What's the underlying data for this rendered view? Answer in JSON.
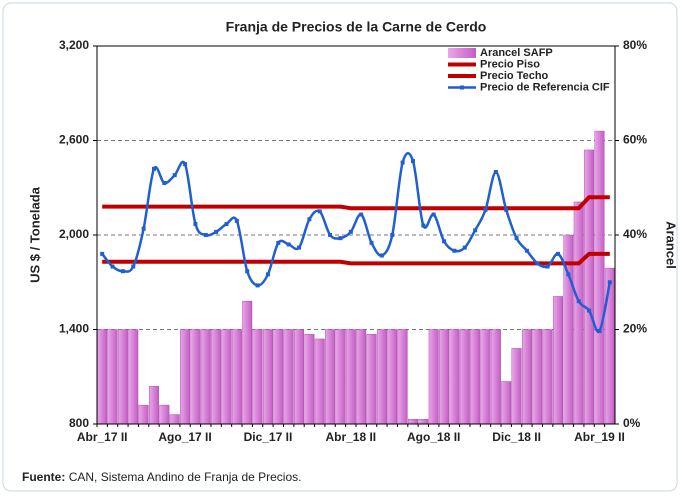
{
  "chart_data": {
    "type": "combo",
    "title": "Franja de Precios de la Carne de Cerdo",
    "y_label": "US $ / Tonelada",
    "y2_label": "Arancel",
    "categories": [
      "Abr_17 II",
      null,
      null,
      null,
      null,
      null,
      null,
      null,
      "Ago_17 II",
      null,
      null,
      null,
      null,
      null,
      null,
      null,
      "Dic_17 II",
      null,
      null,
      null,
      null,
      null,
      null,
      null,
      "Abr_18 II",
      null,
      null,
      null,
      null,
      null,
      null,
      null,
      "Ago_18 II",
      null,
      null,
      null,
      null,
      null,
      null,
      null,
      "Dic_18 II",
      null,
      null,
      null,
      null,
      null,
      null,
      null,
      "Abr_19 II",
      null
    ],
    "series": [
      {
        "name": "Arancel SAFP",
        "type": "bar",
        "axis": "y2",
        "color": "#c45ec4",
        "values": [
          20,
          20,
          20,
          20,
          4,
          8,
          4,
          2,
          20,
          20,
          20,
          20,
          20,
          20,
          26,
          20,
          20,
          20,
          20,
          20,
          19,
          18,
          20,
          20,
          20,
          20,
          19,
          20,
          20,
          20,
          1,
          1,
          20,
          20,
          20,
          20,
          20,
          20,
          20,
          9,
          16,
          20,
          20,
          20,
          27,
          40,
          47,
          58,
          62,
          33
        ]
      },
      {
        "name": "Precio Piso",
        "type": "line",
        "color": "#c00000",
        "values": [
          1830,
          1830,
          1830,
          1830,
          1830,
          1830,
          1830,
          1830,
          1830,
          1830,
          1830,
          1830,
          1830,
          1830,
          1830,
          1830,
          1830,
          1830,
          1830,
          1830,
          1830,
          1830,
          1830,
          1830,
          1820,
          1820,
          1820,
          1820,
          1820,
          1820,
          1820,
          1820,
          1820,
          1820,
          1820,
          1820,
          1820,
          1820,
          1820,
          1820,
          1820,
          1820,
          1820,
          1820,
          1820,
          1820,
          1820,
          1880,
          1880,
          1880
        ]
      },
      {
        "name": "Precio Techo",
        "type": "line",
        "color": "#c00000",
        "values": [
          2180,
          2180,
          2180,
          2180,
          2180,
          2180,
          2180,
          2180,
          2180,
          2180,
          2180,
          2180,
          2180,
          2180,
          2180,
          2180,
          2180,
          2180,
          2180,
          2180,
          2180,
          2180,
          2180,
          2180,
          2170,
          2170,
          2170,
          2170,
          2170,
          2170,
          2170,
          2170,
          2170,
          2170,
          2170,
          2170,
          2170,
          2170,
          2170,
          2170,
          2170,
          2170,
          2170,
          2170,
          2170,
          2170,
          2170,
          2240,
          2240,
          2240
        ]
      },
      {
        "name": "Precio de Referencia CIF",
        "type": "line",
        "color": "#1f5fd1",
        "marker": true,
        "values": [
          1880,
          1800,
          1770,
          1800,
          2040,
          2420,
          2330,
          2380,
          2450,
          2070,
          2000,
          2020,
          2070,
          2090,
          1770,
          1680,
          1750,
          1950,
          1940,
          1920,
          2100,
          2150,
          2000,
          1980,
          2020,
          2130,
          1950,
          1870,
          2000,
          2460,
          2470,
          2060,
          2130,
          1960,
          1900,
          1920,
          2030,
          2160,
          2400,
          2160,
          1980,
          1900,
          1820,
          1800,
          1880,
          1750,
          1580,
          1520,
          1390,
          1700
        ]
      }
    ],
    "ylim": [
      800,
      3200
    ],
    "yticks": [
      800,
      {
        "value": 1400,
        "label": "1,400"
      },
      {
        "value": 2000,
        "label": "2,000"
      },
      {
        "value": 2600,
        "label": "2,600"
      },
      {
        "value": 3200,
        "label": "3,200"
      }
    ],
    "y2lim": [
      0,
      80
    ],
    "y2ticks": [
      {
        "value": 0,
        "label": "0%"
      },
      {
        "value": 20,
        "label": "20%"
      },
      {
        "value": 40,
        "label": "40%"
      },
      {
        "value": 60,
        "label": "60%"
      },
      {
        "value": 80,
        "label": "80%"
      }
    ],
    "grid": true,
    "legend": "top-right"
  },
  "source_label": "Fuente:",
  "source": "CAN, Sistema Andino de Franja de Precios."
}
